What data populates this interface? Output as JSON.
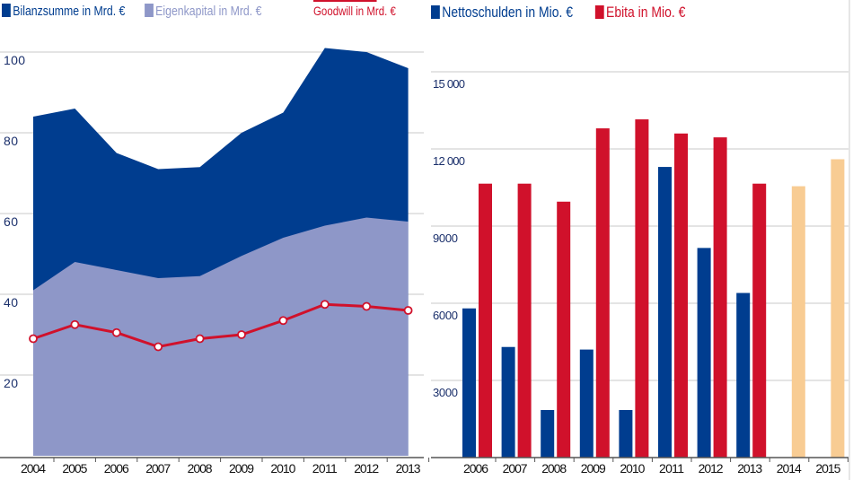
{
  "chart_data": [
    {
      "type": "area",
      "x": [
        "2004",
        "2005",
        "2006",
        "2007",
        "2008",
        "2009",
        "2010",
        "2011",
        "2012",
        "2013"
      ],
      "ylim": [
        0,
        100
      ],
      "yticks": [
        20,
        40,
        60,
        80,
        100
      ],
      "grid": true,
      "legend_placement": "top",
      "series": [
        {
          "name": "Bilanzsumme in Mrd. €",
          "kind": "area",
          "color": "#003d8f",
          "values": [
            84,
            86,
            75,
            71,
            71.5,
            80,
            85,
            101,
            100,
            96
          ]
        },
        {
          "name": "Eigenkapital in Mrd. €",
          "kind": "area",
          "color": "#8e97c8",
          "values": [
            41,
            48,
            46,
            44,
            44.5,
            49.5,
            54,
            57,
            59,
            58
          ]
        },
        {
          "name": "Goodwill in Mrd. €",
          "kind": "line",
          "color": "#d0112b",
          "values": [
            29,
            32.5,
            30.5,
            27,
            29,
            30,
            33.5,
            37.5,
            37,
            36
          ]
        }
      ]
    },
    {
      "type": "bar",
      "categories": [
        "2006",
        "2007",
        "2008",
        "2009",
        "2010",
        "2011",
        "2012",
        "2013",
        "2014",
        "2015"
      ],
      "ylim": [
        0,
        15000
      ],
      "yticks": [
        "3000",
        "6000",
        "9000",
        "12 000",
        "15 000"
      ],
      "ytick_values": [
        3000,
        6000,
        9000,
        12000,
        15000
      ],
      "grid": true,
      "legend_placement": "top",
      "forecast_color": "#f8cc93",
      "series": [
        {
          "name": "Nettoschulden in Mio. €",
          "color": "#003d8f",
          "values": [
            5800,
            4300,
            1850,
            4200,
            1850,
            11300,
            8150,
            6400,
            null,
            null
          ]
        },
        {
          "name": "Ebita in Mio. €",
          "color": "#d0112b",
          "values": [
            10650,
            10650,
            9950,
            12800,
            13150,
            12600,
            12450,
            10650,
            10550,
            11600
          ],
          "forecast_from": "2014"
        }
      ]
    }
  ]
}
